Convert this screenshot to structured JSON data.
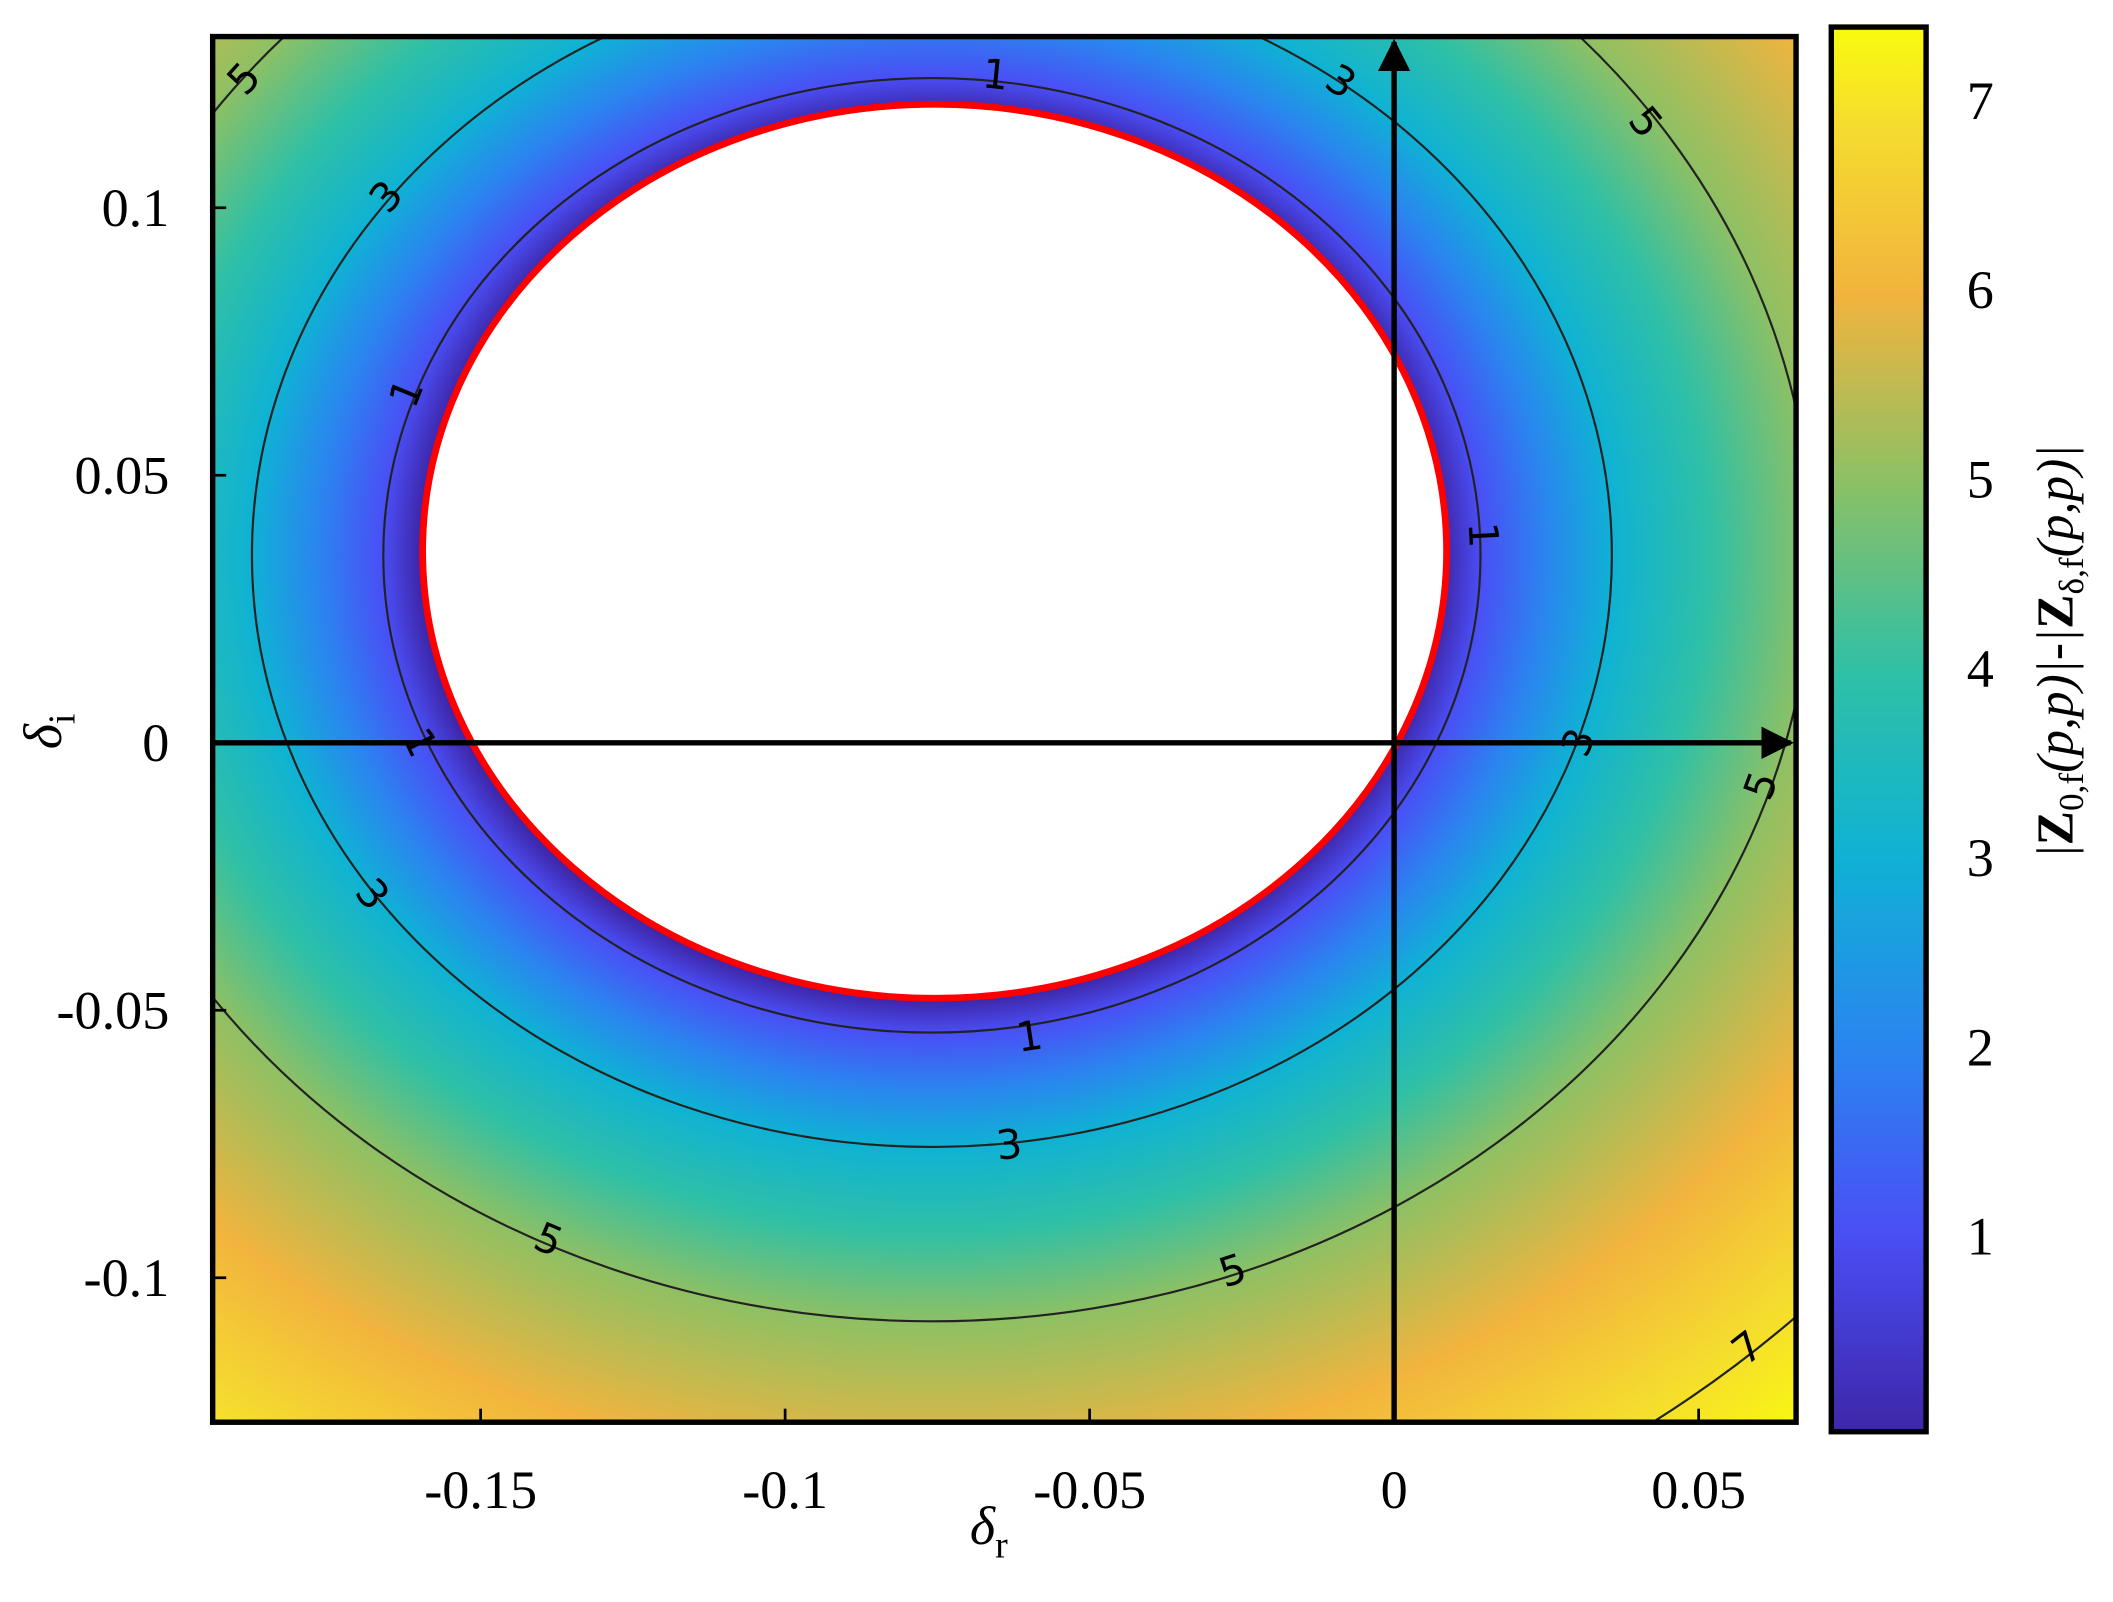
{
  "chart_data": {
    "type": "contour",
    "xlabel": [
      "δ",
      "r"
    ],
    "ylabel": [
      "δ",
      "i"
    ],
    "colorbar_label": [
      "|",
      "Z",
      "0,f",
      "(p,p)|-|",
      "Z",
      "δ,f",
      "(p,p)|"
    ],
    "xlim": [
      -0.194,
      0.066
    ],
    "ylim": [
      -0.127,
      0.132
    ],
    "xticks": [
      -0.15,
      -0.1,
      -0.05,
      0,
      0.05
    ],
    "yticks": [
      -0.1,
      -0.05,
      0,
      0.05,
      0.1
    ],
    "clim": [
      -0.03,
      7.39
    ],
    "cticks": [
      1,
      2,
      3,
      4,
      5,
      6,
      7
    ],
    "levels": [
      1,
      3,
      5,
      7
    ],
    "colormap": "parula"
  }
}
